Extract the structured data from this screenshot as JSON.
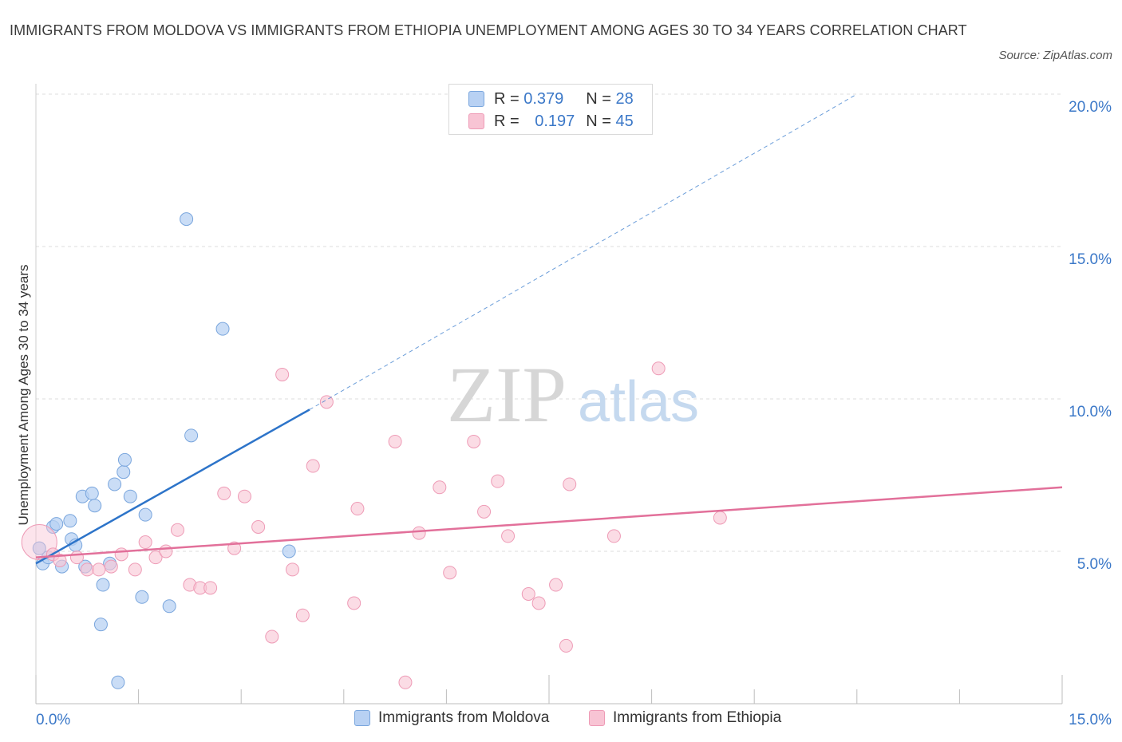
{
  "title": "IMMIGRANTS FROM MOLDOVA VS IMMIGRANTS FROM ETHIOPIA UNEMPLOYMENT AMONG AGES 30 TO 34 YEARS CORRELATION CHART",
  "source": "Source: ZipAtlas.com",
  "watermark": {
    "zip": "ZIP",
    "atlas": "atlas"
  },
  "legend": {
    "r_label": "R =",
    "n_label": "N =",
    "moldova": {
      "r": "0.379",
      "n": "28"
    },
    "ethiopia": {
      "r": "0.197",
      "n": "45"
    }
  },
  "colors": {
    "moldova_fill": "#b8d1f3",
    "moldova_stroke": "#7aa6dd",
    "moldova_line": "#2d74c9",
    "ethiopia_fill": "#f8c4d4",
    "ethiopia_stroke": "#ee9bb6",
    "ethiopia_line": "#e2709a",
    "axis_text": "#3b78c8"
  },
  "chart_data": {
    "type": "scatter",
    "title": "IMMIGRANTS FROM MOLDOVA VS IMMIGRANTS FROM ETHIOPIA UNEMPLOYMENT AMONG AGES 30 TO 34 YEARS CORRELATION CHART",
    "xlabel": "",
    "ylabel": "Unemployment Among Ages 30 to 34 years",
    "xlim": [
      0,
      15
    ],
    "ylim": [
      0,
      20
    ],
    "x_tick_labels": [
      "0.0%",
      "15.0%"
    ],
    "y_ticks": [
      5,
      10,
      15,
      20
    ],
    "y_tick_labels": [
      "5.0%",
      "10.0%",
      "15.0%",
      "20.0%"
    ],
    "grid": true,
    "series": [
      {
        "name": "Immigrants from Moldova",
        "points": [
          [
            0.05,
            5.1
          ],
          [
            0.1,
            4.6
          ],
          [
            0.18,
            4.8
          ],
          [
            0.25,
            5.8
          ],
          [
            0.3,
            5.9
          ],
          [
            0.38,
            4.5
          ],
          [
            0.5,
            6.0
          ],
          [
            0.52,
            5.4
          ],
          [
            0.58,
            5.2
          ],
          [
            0.68,
            6.8
          ],
          [
            0.72,
            4.5
          ],
          [
            0.82,
            6.9
          ],
          [
            0.86,
            6.5
          ],
          [
            0.95,
            2.6
          ],
          [
            0.98,
            3.9
          ],
          [
            1.08,
            4.6
          ],
          [
            1.15,
            7.2
          ],
          [
            1.2,
            0.7
          ],
          [
            1.28,
            7.6
          ],
          [
            1.3,
            8.0
          ],
          [
            1.38,
            6.8
          ],
          [
            1.55,
            3.5
          ],
          [
            1.6,
            6.2
          ],
          [
            1.95,
            3.2
          ],
          [
            2.2,
            15.9
          ],
          [
            2.27,
            8.8
          ],
          [
            2.73,
            12.3
          ],
          [
            3.7,
            5.0
          ]
        ],
        "trend": {
          "x": [
            0,
            4.0
          ],
          "y": [
            4.6,
            9.65
          ]
        },
        "trend_extension": {
          "x": [
            4.0,
            12.0
          ],
          "y": [
            9.65,
            20.0
          ]
        }
      },
      {
        "name": "Immigrants from Ethiopia",
        "points": [
          [
            0.05,
            5.3
          ],
          [
            0.25,
            4.9
          ],
          [
            0.6,
            4.8
          ],
          [
            0.75,
            4.4
          ],
          [
            0.92,
            4.4
          ],
          [
            1.1,
            4.5
          ],
          [
            1.25,
            4.9
          ],
          [
            1.45,
            4.4
          ],
          [
            1.6,
            5.3
          ],
          [
            1.75,
            4.8
          ],
          [
            1.9,
            5.0
          ],
          [
            2.07,
            5.7
          ],
          [
            2.25,
            3.9
          ],
          [
            2.4,
            3.8
          ],
          [
            2.55,
            3.8
          ],
          [
            2.75,
            6.9
          ],
          [
            2.9,
            5.1
          ],
          [
            3.05,
            6.8
          ],
          [
            3.25,
            5.8
          ],
          [
            3.45,
            2.2
          ],
          [
            3.6,
            10.8
          ],
          [
            3.75,
            4.4
          ],
          [
            3.9,
            2.9
          ],
          [
            4.05,
            7.8
          ],
          [
            4.25,
            9.9
          ],
          [
            4.65,
            3.3
          ],
          [
            4.7,
            6.4
          ],
          [
            5.25,
            8.6
          ],
          [
            5.4,
            0.7
          ],
          [
            5.6,
            5.6
          ],
          [
            5.9,
            7.1
          ],
          [
            6.05,
            4.3
          ],
          [
            6.4,
            8.6
          ],
          [
            6.55,
            6.3
          ],
          [
            6.75,
            7.3
          ],
          [
            6.9,
            5.5
          ],
          [
            7.2,
            3.6
          ],
          [
            7.35,
            3.3
          ],
          [
            7.6,
            3.9
          ],
          [
            7.75,
            1.9
          ],
          [
            7.8,
            7.2
          ],
          [
            8.45,
            5.5
          ],
          [
            9.1,
            11.0
          ],
          [
            10.0,
            6.1
          ],
          [
            0.35,
            4.7
          ]
        ],
        "trend": {
          "x": [
            0,
            15.0
          ],
          "y": [
            4.8,
            7.1
          ]
        }
      }
    ]
  },
  "bottom_legend": {
    "moldova": "Immigrants from Moldova",
    "ethiopia": "Immigrants from Ethiopia"
  }
}
